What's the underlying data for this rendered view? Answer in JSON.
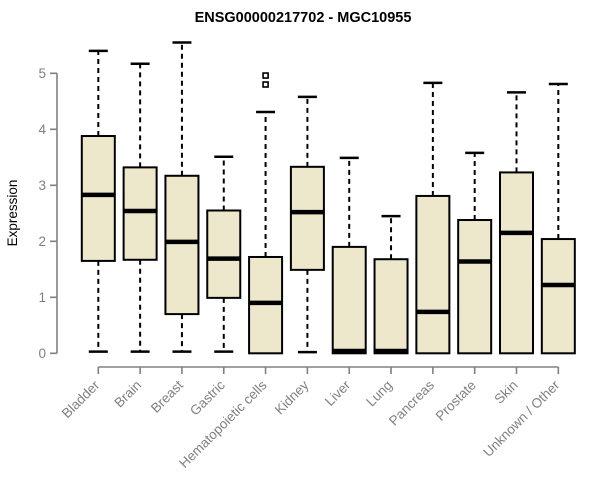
{
  "chart_data": {
    "type": "boxplot",
    "title": "ENSG00000217702 - MGC10955",
    "ylabel": "Expression",
    "xlabel": "",
    "ylim": [
      0,
      5
    ],
    "yticks": [
      0,
      1,
      2,
      3,
      4,
      5
    ],
    "grid": false,
    "legend": false,
    "categories": [
      "Bladder",
      "Brain",
      "Breast",
      "Gastric",
      "Hematopoietic cells",
      "Kidney",
      "Liver",
      "Lung",
      "Pancreas",
      "Prostate",
      "Skin",
      "Unknown / Other"
    ],
    "boxes": [
      {
        "name": "Bladder",
        "low": 0.03,
        "q1": 1.65,
        "median": 2.83,
        "q3": 3.88,
        "high": 5.4,
        "outliers": []
      },
      {
        "name": "Brain",
        "low": 0.03,
        "q1": 1.67,
        "median": 2.54,
        "q3": 3.32,
        "high": 5.17,
        "outliers": []
      },
      {
        "name": "Breast",
        "low": 0.03,
        "q1": 0.7,
        "median": 1.99,
        "q3": 3.17,
        "high": 5.55,
        "outliers": []
      },
      {
        "name": "Gastric",
        "low": 0.03,
        "q1": 0.99,
        "median": 1.69,
        "q3": 2.55,
        "high": 3.51,
        "outliers": []
      },
      {
        "name": "Hematopoietic cells",
        "low": 0.0,
        "q1": 0.0,
        "median": 0.9,
        "q3": 1.72,
        "high": 4.31,
        "outliers": [
          4.8,
          4.96
        ]
      },
      {
        "name": "Kidney",
        "low": 0.02,
        "q1": 1.49,
        "median": 2.52,
        "q3": 3.33,
        "high": 4.58,
        "outliers": []
      },
      {
        "name": "Liver",
        "low": 0.0,
        "q1": 0.0,
        "median": 0.04,
        "q3": 1.9,
        "high": 3.49,
        "outliers": []
      },
      {
        "name": "Lung",
        "low": 0.0,
        "q1": 0.0,
        "median": 0.04,
        "q3": 1.68,
        "high": 2.45,
        "outliers": []
      },
      {
        "name": "Pancreas",
        "low": 0.0,
        "q1": 0.0,
        "median": 0.74,
        "q3": 2.81,
        "high": 4.83,
        "outliers": []
      },
      {
        "name": "Prostate",
        "low": 0.0,
        "q1": 0.0,
        "median": 1.64,
        "q3": 2.38,
        "high": 3.58,
        "outliers": []
      },
      {
        "name": "Skin",
        "low": 0.0,
        "q1": 0.0,
        "median": 2.15,
        "q3": 3.23,
        "high": 4.66,
        "outliers": []
      },
      {
        "name": "Unknown / Other",
        "low": 0.0,
        "q1": 0.0,
        "median": 1.22,
        "q3": 2.04,
        "high": 4.81,
        "outliers": []
      }
    ],
    "colors": {
      "box_fill": "#EDE8CC",
      "box_stroke": "#000000",
      "median": "#000000",
      "whisker": "#000000",
      "axis": "#808080",
      "tick_label": "#808080",
      "title": "#000000",
      "background": "#FFFFFF"
    }
  }
}
